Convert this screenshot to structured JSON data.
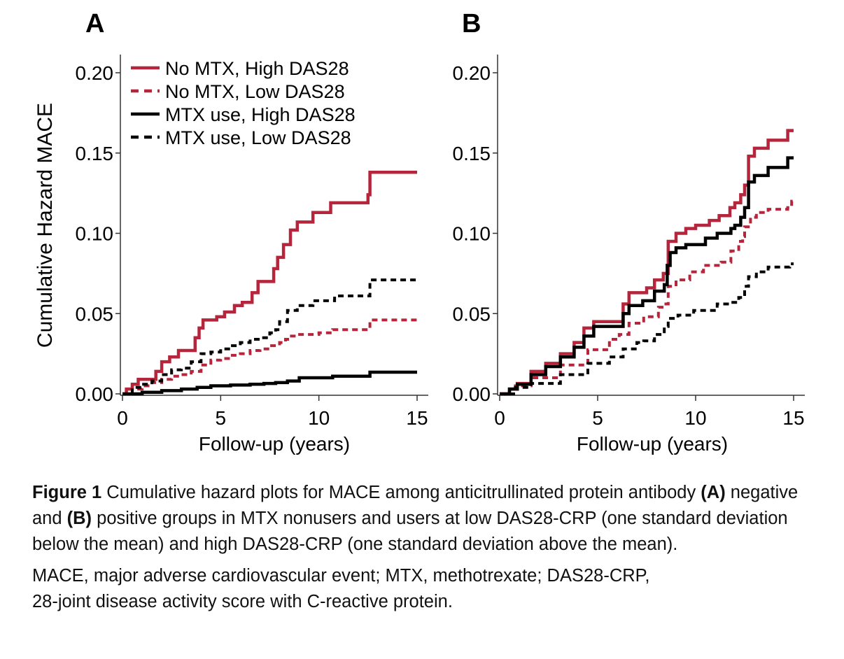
{
  "colors": {
    "red": "#b5253b",
    "black": "#000000",
    "axis": "#333333"
  },
  "legend": [
    {
      "label": "No MTX, High DAS28",
      "color": "red",
      "dash": false
    },
    {
      "label": "No MTX, Low DAS28",
      "color": "red",
      "dash": true
    },
    {
      "label": "MTX use, High DAS28",
      "color": "black",
      "dash": false
    },
    {
      "label": "MTX use, Low DAS28",
      "color": "black",
      "dash": true
    }
  ],
  "chart_data": [
    {
      "panel": "A",
      "type": "line",
      "step": true,
      "title": "",
      "xlabel": "Follow-up (years)",
      "ylabel": "Cumulative Hazard MACE",
      "xlim": [
        0,
        15
      ],
      "ylim": [
        0,
        0.2
      ],
      "xticks": [
        "0",
        "5",
        "10",
        "15"
      ],
      "yticks": [
        "0.00",
        "0.05",
        "0.10",
        "0.15",
        "0.20"
      ],
      "grid": false,
      "legend_position": "top-left",
      "series": [
        {
          "name": "No MTX, High DAS28",
          "color": "red",
          "dash": false,
          "points": [
            [
              0,
              0
            ],
            [
              0.2,
              0.003
            ],
            [
              0.5,
              0.006
            ],
            [
              0.8,
              0.009
            ],
            [
              1.35,
              0.009
            ],
            [
              1.7,
              0.014
            ],
            [
              2.0,
              0.02
            ],
            [
              2.4,
              0.023
            ],
            [
              2.85,
              0.027
            ],
            [
              3.4,
              0.027
            ],
            [
              3.7,
              0.035
            ],
            [
              3.9,
              0.041
            ],
            [
              4.1,
              0.046
            ],
            [
              4.6,
              0.046
            ],
            [
              4.8,
              0.048
            ],
            [
              5.2,
              0.051
            ],
            [
              5.7,
              0.055
            ],
            [
              6.1,
              0.057
            ],
            [
              6.6,
              0.063
            ],
            [
              6.9,
              0.07
            ],
            [
              7.5,
              0.07
            ],
            [
              7.7,
              0.078
            ],
            [
              7.9,
              0.085
            ],
            [
              8.2,
              0.093
            ],
            [
              8.55,
              0.102
            ],
            [
              8.9,
              0.107
            ],
            [
              9.7,
              0.107
            ],
            [
              9.7,
              0.113
            ],
            [
              10.6,
              0.113
            ],
            [
              10.6,
              0.119
            ],
            [
              12.4,
              0.119
            ],
            [
              12.5,
              0.124
            ],
            [
              12.6,
              0.138
            ],
            [
              15.0,
              0.138
            ]
          ]
        },
        {
          "name": "No MTX, Low DAS28",
          "color": "red",
          "dash": true,
          "points": [
            [
              0,
              0
            ],
            [
              0.5,
              0.003
            ],
            [
              1.0,
              0.005
            ],
            [
              1.5,
              0.007
            ],
            [
              2.0,
              0.009
            ],
            [
              2.5,
              0.011
            ],
            [
              3.0,
              0.012
            ],
            [
              3.5,
              0.014
            ],
            [
              4.0,
              0.018
            ],
            [
              4.5,
              0.021
            ],
            [
              5.0,
              0.022
            ],
            [
              5.5,
              0.024
            ],
            [
              6.0,
              0.025
            ],
            [
              6.5,
              0.027
            ],
            [
              7.0,
              0.028
            ],
            [
              7.5,
              0.03
            ],
            [
              8.0,
              0.032
            ],
            [
              8.3,
              0.034
            ],
            [
              8.6,
              0.036
            ],
            [
              8.9,
              0.037
            ],
            [
              10.0,
              0.038
            ],
            [
              10.7,
              0.04
            ],
            [
              12.5,
              0.04
            ],
            [
              12.6,
              0.046
            ],
            [
              15.0,
              0.046
            ]
          ]
        },
        {
          "name": "MTX use, High DAS28",
          "color": "black",
          "dash": false,
          "points": [
            [
              0,
              0
            ],
            [
              1.0,
              0.001
            ],
            [
              2.0,
              0.002
            ],
            [
              3.0,
              0.003
            ],
            [
              3.8,
              0.004
            ],
            [
              4.5,
              0.005
            ],
            [
              5.5,
              0.0055
            ],
            [
              6.5,
              0.006
            ],
            [
              7.2,
              0.0065
            ],
            [
              7.8,
              0.007
            ],
            [
              8.4,
              0.008
            ],
            [
              9.0,
              0.01
            ],
            [
              10.0,
              0.01
            ],
            [
              10.7,
              0.011
            ],
            [
              12.5,
              0.011
            ],
            [
              12.6,
              0.0135
            ],
            [
              15.0,
              0.0135
            ]
          ]
        },
        {
          "name": "MTX use, Low DAS28",
          "color": "black",
          "dash": true,
          "points": [
            [
              0,
              0
            ],
            [
              0.5,
              0.004
            ],
            [
              1.0,
              0.006
            ],
            [
              1.5,
              0.008
            ],
            [
              2.0,
              0.012
            ],
            [
              2.5,
              0.015
            ],
            [
              3.0,
              0.016
            ],
            [
              3.5,
              0.02
            ],
            [
              4.0,
              0.025
            ],
            [
              4.5,
              0.026
            ],
            [
              5.0,
              0.028
            ],
            [
              5.5,
              0.03
            ],
            [
              6.0,
              0.032
            ],
            [
              6.5,
              0.034
            ],
            [
              7.0,
              0.035
            ],
            [
              7.5,
              0.038
            ],
            [
              7.8,
              0.04
            ],
            [
              8.0,
              0.045
            ],
            [
              8.4,
              0.052
            ],
            [
              8.9,
              0.055
            ],
            [
              9.7,
              0.058
            ],
            [
              10.8,
              0.061
            ],
            [
              12.5,
              0.061
            ],
            [
              12.6,
              0.071
            ],
            [
              15.0,
              0.071
            ]
          ]
        }
      ]
    },
    {
      "panel": "B",
      "type": "line",
      "step": true,
      "title": "",
      "xlabel": "Follow-up (years)",
      "ylabel": "",
      "xlim": [
        0,
        15
      ],
      "ylim": [
        0,
        0.2
      ],
      "xticks": [
        "0",
        "5",
        "10",
        "15"
      ],
      "yticks": [
        "0.00",
        "0.05",
        "0.10",
        "0.15",
        "0.20"
      ],
      "grid": false,
      "series": [
        {
          "name": "No MTX, High DAS28",
          "color": "red",
          "dash": false,
          "points": [
            [
              0,
              0
            ],
            [
              0.5,
              0.003
            ],
            [
              0.9,
              0.0065
            ],
            [
              1.6,
              0.014
            ],
            [
              2.35,
              0.019
            ],
            [
              3.1,
              0.025
            ],
            [
              3.8,
              0.032
            ],
            [
              4.3,
              0.041
            ],
            [
              4.8,
              0.045
            ],
            [
              5.8,
              0.045
            ],
            [
              6.3,
              0.056
            ],
            [
              6.6,
              0.063
            ],
            [
              7.3,
              0.063
            ],
            [
              7.5,
              0.066
            ],
            [
              7.9,
              0.071
            ],
            [
              8.35,
              0.075
            ],
            [
              8.5,
              0.075
            ],
            [
              8.6,
              0.095
            ],
            [
              9.0,
              0.1
            ],
            [
              9.5,
              0.103
            ],
            [
              10.0,
              0.105
            ],
            [
              10.7,
              0.108
            ],
            [
              11.2,
              0.111
            ],
            [
              11.75,
              0.116
            ],
            [
              12.0,
              0.119
            ],
            [
              12.3,
              0.124
            ],
            [
              12.5,
              0.13
            ],
            [
              12.7,
              0.148
            ],
            [
              13.0,
              0.153
            ],
            [
              13.7,
              0.153
            ],
            [
              13.7,
              0.158
            ],
            [
              14.7,
              0.158
            ],
            [
              14.7,
              0.164
            ],
            [
              15.0,
              0.164
            ]
          ]
        },
        {
          "name": "No MTX, Low DAS28",
          "color": "red",
          "dash": true,
          "points": [
            [
              0,
              0
            ],
            [
              0.8,
              0.005
            ],
            [
              1.6,
              0.01
            ],
            [
              3.1,
              0.018
            ],
            [
              4.5,
              0.0275
            ],
            [
              5.6,
              0.034
            ],
            [
              6.1,
              0.037
            ],
            [
              6.6,
              0.044
            ],
            [
              7.35,
              0.048
            ],
            [
              8.1,
              0.054
            ],
            [
              8.4,
              0.056
            ],
            [
              8.6,
              0.067
            ],
            [
              9.0,
              0.071
            ],
            [
              9.7,
              0.076
            ],
            [
              10.4,
              0.08
            ],
            [
              11.3,
              0.082
            ],
            [
              11.8,
              0.089
            ],
            [
              12.2,
              0.095
            ],
            [
              12.4,
              0.098
            ],
            [
              12.5,
              0.104
            ],
            [
              12.8,
              0.11
            ],
            [
              13.1,
              0.113
            ],
            [
              13.7,
              0.115
            ],
            [
              14.7,
              0.116
            ],
            [
              14.9,
              0.12
            ],
            [
              15.0,
              0.12
            ]
          ]
        },
        {
          "name": "MTX use, High DAS28",
          "color": "black",
          "dash": false,
          "points": [
            [
              0,
              0
            ],
            [
              0.5,
              0.003
            ],
            [
              0.9,
              0.006
            ],
            [
              1.6,
              0.012
            ],
            [
              2.35,
              0.017
            ],
            [
              3.1,
              0.023
            ],
            [
              3.8,
              0.029
            ],
            [
              4.3,
              0.036
            ],
            [
              4.8,
              0.042
            ],
            [
              5.8,
              0.042
            ],
            [
              6.3,
              0.05
            ],
            [
              6.6,
              0.055
            ],
            [
              7.3,
              0.058
            ],
            [
              7.9,
              0.064
            ],
            [
              8.4,
              0.068
            ],
            [
              8.55,
              0.08
            ],
            [
              8.7,
              0.088
            ],
            [
              9.0,
              0.091
            ],
            [
              9.5,
              0.093
            ],
            [
              10.5,
              0.097
            ],
            [
              11.1,
              0.1
            ],
            [
              11.8,
              0.103
            ],
            [
              12.0,
              0.105
            ],
            [
              12.3,
              0.11
            ],
            [
              12.5,
              0.116
            ],
            [
              12.7,
              0.132
            ],
            [
              13.0,
              0.136
            ],
            [
              13.7,
              0.136
            ],
            [
              13.7,
              0.141
            ],
            [
              14.7,
              0.141
            ],
            [
              14.7,
              0.147
            ],
            [
              15.0,
              0.147
            ]
          ]
        },
        {
          "name": "MTX use, Low DAS28",
          "color": "black",
          "dash": true,
          "points": [
            [
              0,
              0
            ],
            [
              0.8,
              0.004
            ],
            [
              1.6,
              0.0065
            ],
            [
              3.1,
              0.012
            ],
            [
              4.5,
              0.019
            ],
            [
              5.6,
              0.023
            ],
            [
              6.3,
              0.028
            ],
            [
              7.0,
              0.032
            ],
            [
              7.35,
              0.033
            ],
            [
              7.9,
              0.037
            ],
            [
              8.4,
              0.042
            ],
            [
              8.6,
              0.047
            ],
            [
              9.1,
              0.049
            ],
            [
              9.9,
              0.052
            ],
            [
              11.1,
              0.056
            ],
            [
              11.8,
              0.057
            ],
            [
              12.2,
              0.06
            ],
            [
              12.5,
              0.067
            ],
            [
              12.7,
              0.073
            ],
            [
              13.1,
              0.076
            ],
            [
              13.7,
              0.079
            ],
            [
              14.7,
              0.079
            ],
            [
              14.8,
              0.081
            ],
            [
              15.0,
              0.081
            ]
          ]
        }
      ]
    }
  ],
  "caption": {
    "figure_label": "Figure 1",
    "part1": " Cumulative hazard plots for MACE among anticitrullinated protein antibody ",
    "label_a": "(A)",
    "part2": " negative and ",
    "label_b": "(B)",
    "part3": " positive groups in MTX nonusers and users at low DAS28-CRP (one standard deviation below the mean) and high DAS28-CRP (one standard deviation above the mean).",
    "notes_line1": "MACE, major adverse cardiovascular event; MTX, methotrexate; DAS28-CRP,",
    "notes_line2": "28-joint disease activity score with C-reactive protein."
  }
}
